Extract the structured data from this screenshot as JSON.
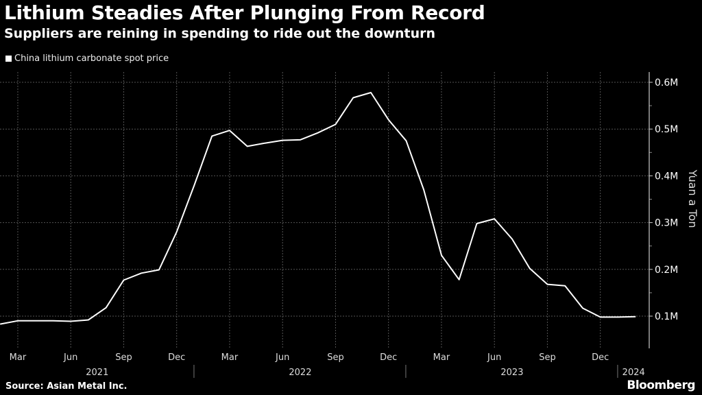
{
  "header": {
    "title": "Lithium Steadies After Plunging From Record",
    "subtitle": "Suppliers are reining in spending to ride out the downturn"
  },
  "footer": {
    "source": "Source: Asian Metal Inc.",
    "logo": "Bloomberg"
  },
  "chart_data": {
    "type": "line",
    "title": "Lithium Steadies After Plunging From Record",
    "subtitle": "Suppliers are reining in spending to ride out the downturn",
    "ylabel": "Yuan a Ton",
    "xlabel": "",
    "ylim": [
      0.03,
      0.63
    ],
    "grid": true,
    "legend_placement": "top-left",
    "y_ticks": [
      {
        "v": 0.1,
        "label": "0.1M"
      },
      {
        "v": 0.2,
        "label": "0.2M"
      },
      {
        "v": 0.3,
        "label": "0.3M"
      },
      {
        "v": 0.4,
        "label": "0.4M"
      },
      {
        "v": 0.5,
        "label": "0.5M"
      },
      {
        "v": 0.6,
        "label": "0.6M"
      }
    ],
    "x_ticks": [
      {
        "i": 1,
        "label": "Mar"
      },
      {
        "i": 4,
        "label": "Jun"
      },
      {
        "i": 7,
        "label": "Sep"
      },
      {
        "i": 10,
        "label": "Dec"
      },
      {
        "i": 13,
        "label": "Mar"
      },
      {
        "i": 16,
        "label": "Jun"
      },
      {
        "i": 19,
        "label": "Sep"
      },
      {
        "i": 22,
        "label": "Dec"
      },
      {
        "i": 25,
        "label": "Mar"
      },
      {
        "i": 28,
        "label": "Jun"
      },
      {
        "i": 31,
        "label": "Sep"
      },
      {
        "i": 34,
        "label": "Dec"
      }
    ],
    "year_labels": [
      {
        "label": "2021",
        "from": 0,
        "to": 11
      },
      {
        "label": "2022",
        "from": 11,
        "to": 23
      },
      {
        "label": "2023",
        "from": 23,
        "to": 35
      },
      {
        "label": "2024",
        "from": 35,
        "to": 37
      }
    ],
    "series": [
      {
        "name": "China lithium carbonate spot price",
        "color": "#ffffff",
        "x": [
          "2021-02",
          "2021-03",
          "2021-04",
          "2021-05",
          "2021-06",
          "2021-07",
          "2021-08",
          "2021-09",
          "2021-10",
          "2021-11",
          "2021-12",
          "2022-01",
          "2022-02",
          "2022-03",
          "2022-04",
          "2022-05",
          "2022-06",
          "2022-07",
          "2022-08",
          "2022-09",
          "2022-10",
          "2022-11",
          "2022-12",
          "2023-01",
          "2023-02",
          "2023-03",
          "2023-04",
          "2023-05",
          "2023-06",
          "2023-07",
          "2023-08",
          "2023-09",
          "2023-10",
          "2023-11",
          "2023-12",
          "2024-01",
          "2024-02"
        ],
        "values": [
          0.083,
          0.09,
          0.09,
          0.09,
          0.089,
          0.092,
          0.118,
          0.177,
          0.192,
          0.199,
          0.28,
          0.38,
          0.485,
          0.497,
          0.463,
          0.47,
          0.476,
          0.477,
          0.492,
          0.51,
          0.567,
          0.578,
          0.52,
          0.475,
          0.37,
          0.23,
          0.178,
          0.298,
          0.308,
          0.265,
          0.202,
          0.168,
          0.165,
          0.117,
          0.098,
          0.098,
          0.099
        ]
      }
    ]
  }
}
